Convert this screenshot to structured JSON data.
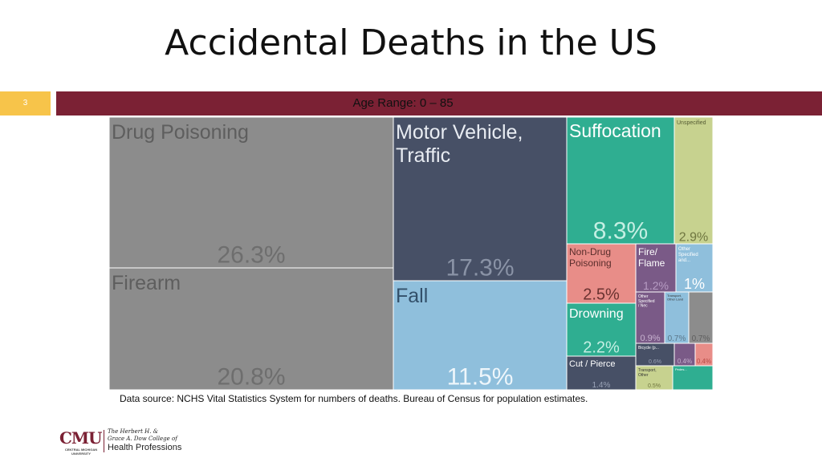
{
  "slide": {
    "title": "Accidental Deaths in the US",
    "number": "3",
    "subtitle": "Age Range: 0 – 85",
    "source": "Data source: NCHS Vital Statistics System for numbers of deaths. Bureau of Census for population estimates."
  },
  "logo": {
    "cmu": "CMU",
    "cmu_sub": "CENTRAL MICHIGAN UNIVERSITY",
    "college_line1": "The Herbert H. &",
    "college_line2": "Grace A. Dow College of",
    "college_line3": "Health Professions"
  },
  "chart_data": {
    "type": "treemap",
    "title": "",
    "items": [
      {
        "label": "Drug Poisoning",
        "value_label": "26.3%",
        "value": 26.3,
        "color": "#8c8c8c"
      },
      {
        "label": "Firearm",
        "value_label": "20.8%",
        "value": 20.8,
        "color": "#8c8c8c"
      },
      {
        "label": "Motor Vehicle, Traffic",
        "value_label": "17.3%",
        "value": 17.3,
        "color": "#475066"
      },
      {
        "label": "Fall",
        "value_label": "11.5%",
        "value": 11.5,
        "color": "#8fbfdc"
      },
      {
        "label": "Suffocation",
        "value_label": "8.3%",
        "value": 8.3,
        "color": "#2fae91"
      },
      {
        "label": "Unspecified",
        "value_label": "2.9%",
        "value": 2.9,
        "color": "#c7d28f"
      },
      {
        "label": "Non-Drug Poisoning",
        "value_label": "2.5%",
        "value": 2.5,
        "color": "#e88d88"
      },
      {
        "label": "Fire/ Flame",
        "value_label": "1.2%",
        "value": 1.2,
        "color": "#7a5a87"
      },
      {
        "label": "Other Specified and...",
        "value_label": "1%",
        "value": 1.0,
        "color": "#8fbfdc"
      },
      {
        "label": "Drowning",
        "value_label": "2.2%",
        "value": 2.2,
        "color": "#2fae91"
      },
      {
        "label": "Other Specified / Nec",
        "value_label": "0.9%",
        "value": 0.9,
        "color": "#7a5a87"
      },
      {
        "label": "Transport, Other Land",
        "value_label": "0.7%",
        "value": 0.7,
        "color": "#8fbfdc"
      },
      {
        "label": "",
        "value_label": "0.7%",
        "value": 0.7,
        "color": "#8c8c8c"
      },
      {
        "label": "Cut / Pierce",
        "value_label": "1.4%",
        "value": 1.4,
        "color": "#475066"
      },
      {
        "label": "Bicycle (p...",
        "value_label": "0.6%",
        "value": 0.6,
        "color": "#475066"
      },
      {
        "label": "",
        "value_label": "0.4%",
        "value": 0.4,
        "color": "#7a5a87"
      },
      {
        "label": "",
        "value_label": "0.4%",
        "value": 0.4,
        "color": "#e88d88"
      },
      {
        "label": "Transport, Other",
        "value_label": "0.5%",
        "value": 0.5,
        "color": "#c7d28f"
      },
      {
        "label": "Pedes...",
        "value_label": "",
        "value": 0.3,
        "color": "#2fae91"
      }
    ]
  }
}
